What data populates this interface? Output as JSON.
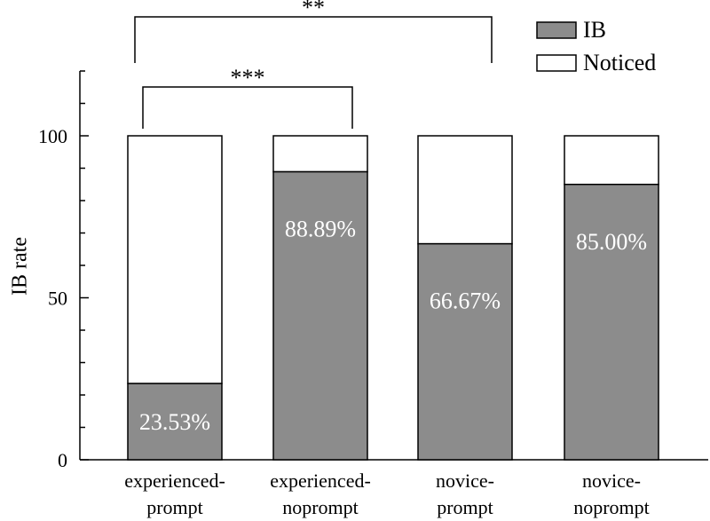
{
  "chart_data": {
    "type": "bar",
    "stacked": true,
    "categories": [
      [
        "experienced-",
        "prompt"
      ],
      [
        "experienced-",
        "noprompt"
      ],
      [
        "novice-",
        "prompt"
      ],
      [
        "novice-",
        "noprompt"
      ]
    ],
    "series": [
      {
        "name": "IB",
        "values": [
          23.53,
          88.89,
          66.67,
          85.0
        ],
        "color": "#8c8c8c"
      },
      {
        "name": "Noticed",
        "values": [
          76.47,
          11.11,
          33.33,
          15.0
        ],
        "color": "#ffffff"
      }
    ],
    "data_labels": [
      "23.53%",
      "88.89%",
      "66.67%",
      "85.00%"
    ],
    "ylabel": "IB rate",
    "xlabel": "",
    "ylim": [
      0,
      120
    ],
    "yticks": [
      0,
      50,
      100
    ],
    "yticks_minor_step": 10,
    "grid": false,
    "legend_position": "top-right",
    "significance": [
      {
        "from": 0,
        "to": 1,
        "label": "***"
      },
      {
        "from": 0,
        "to": 2,
        "label": "**"
      }
    ]
  }
}
